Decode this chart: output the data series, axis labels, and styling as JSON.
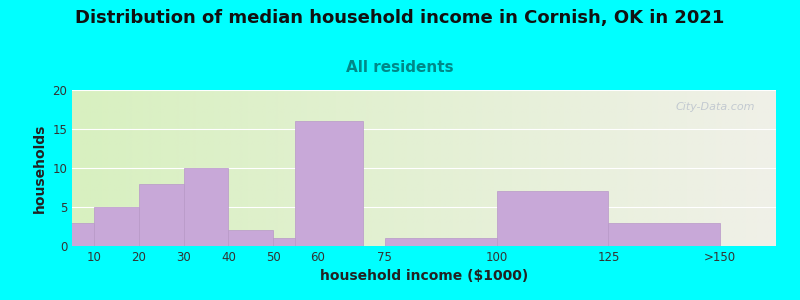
{
  "title": "Distribution of median household income in Cornish, OK in 2021",
  "subtitle": "All residents",
  "xlabel": "household income ($1000)",
  "ylabel": "households",
  "bar_lefts": [
    5,
    15,
    25,
    35,
    45,
    55,
    62.5,
    87.5,
    112.5,
    137.5
  ],
  "bar_widths": [
    10,
    10,
    10,
    10,
    10,
    10,
    15,
    25,
    25,
    25
  ],
  "bar_values": [
    3,
    5,
    8,
    10,
    2,
    1,
    16,
    1,
    7,
    3
  ],
  "xtick_positions": [
    10,
    20,
    30,
    40,
    50,
    60,
    75,
    100,
    125,
    150
  ],
  "xtick_labels": [
    "10",
    "20",
    "30",
    "40",
    "50",
    "60",
    "75",
    "100",
    "125",
    ">150"
  ],
  "bar_color": "#c8a8d8",
  "bar_edge_color": "#b898c8",
  "ylim": [
    0,
    20
  ],
  "yticks": [
    0,
    5,
    10,
    15,
    20
  ],
  "xlim": [
    5,
    162.5
  ],
  "background_color": "#00ffff",
  "plot_bg_left": "#d8f0c0",
  "plot_bg_right": "#f0f0e8",
  "title_fontsize": 13,
  "subtitle_fontsize": 11,
  "axis_label_fontsize": 10,
  "watermark_text": "City-Data.com",
  "watermark_color": "#b8c0cc"
}
